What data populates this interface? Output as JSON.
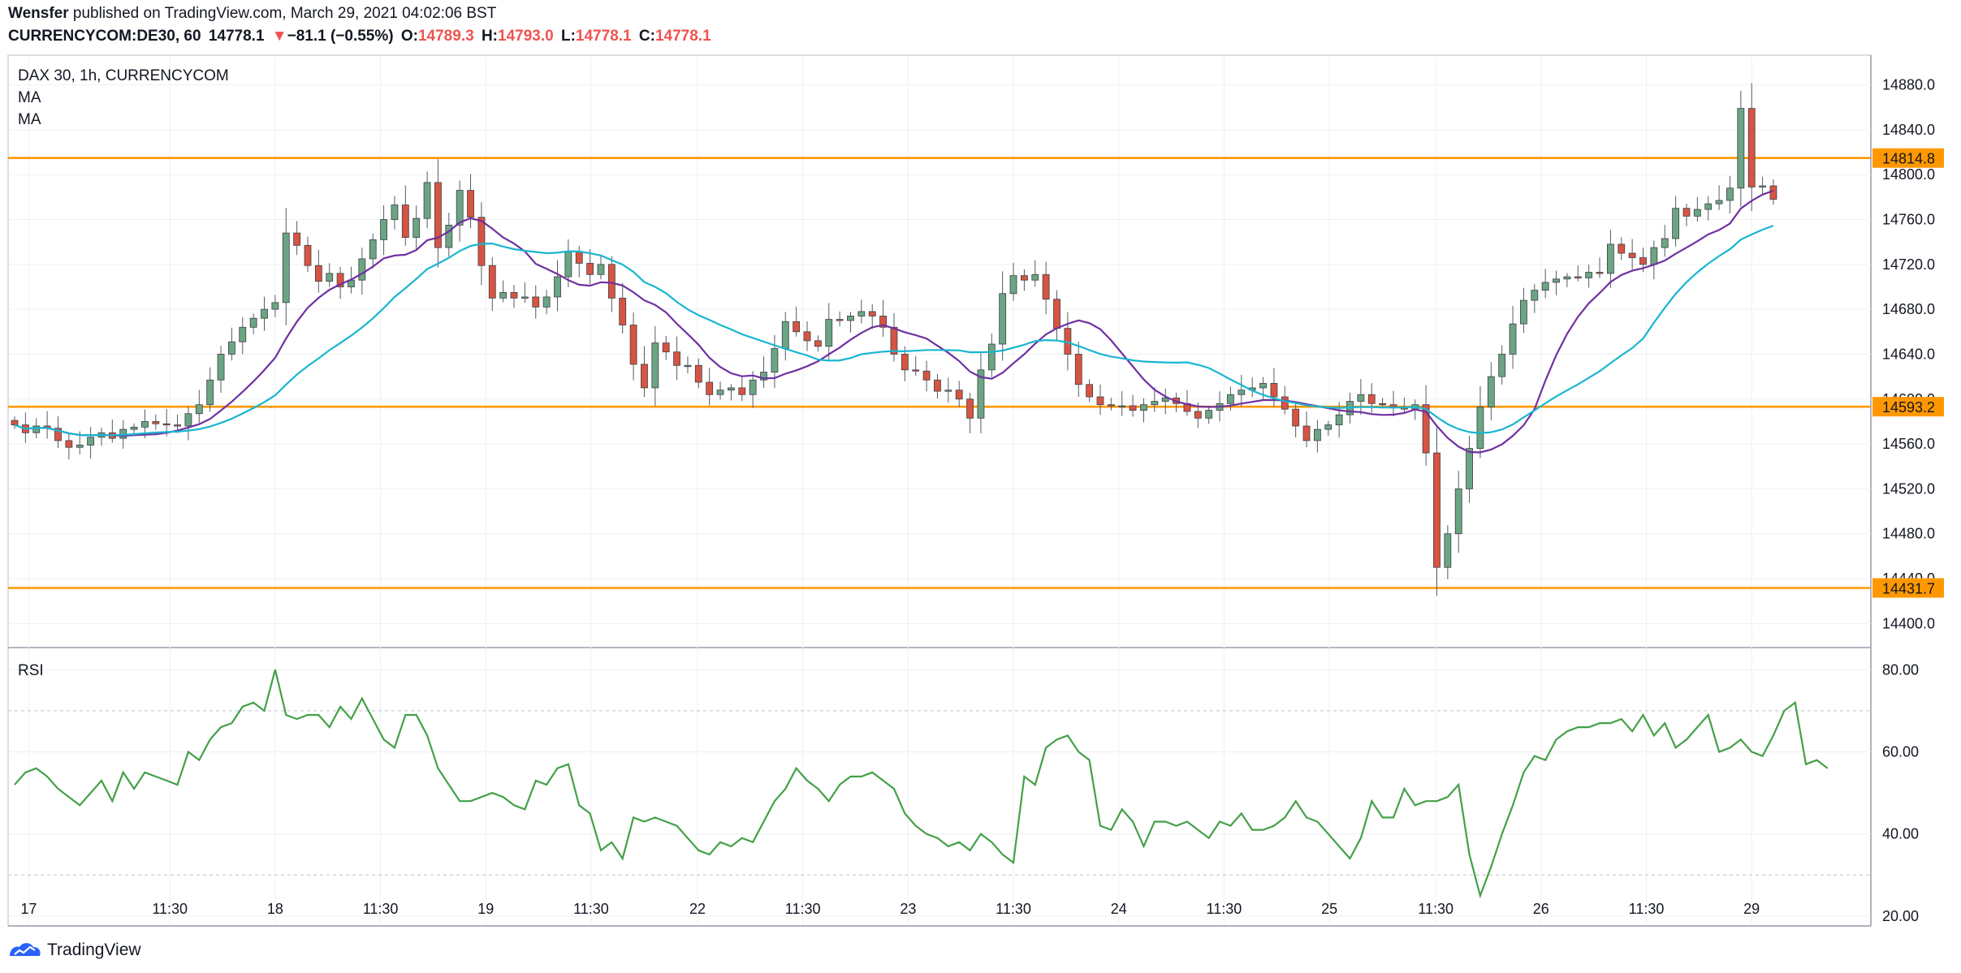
{
  "header": {
    "author": "Wensfer",
    "published_text": "published on TradingView.com, March 29, 2021 04:02:06 BST",
    "symbol": "CURRENCYCOM:DE30, 60",
    "last": "14778.1",
    "change_arrow": "▼",
    "change": "−81.1 (−0.55%)",
    "open_label": "O:",
    "open": "14789.3",
    "high_label": "H:",
    "high": "14793.0",
    "low_label": "L:",
    "low": "14778.1",
    "close_label": "C:",
    "close": "14778.1"
  },
  "legend": {
    "title": "DAX 30, 1h, CURRENCYCOM",
    "ma1": "MA",
    "ma2": "MA",
    "rsi": "RSI"
  },
  "footer": {
    "brand": "TradingView",
    "logo_icon": "tradingview-logo-icon"
  },
  "colors": {
    "up": "#6ba583",
    "down": "#d75442",
    "ma_fast": "#7030a0",
    "ma_slow": "#18b6cf",
    "level": "#ff9800",
    "rsi": "#43a047",
    "text_red": "#ef5350"
  },
  "chart_data": {
    "type": "candlestick",
    "price_axis": {
      "ylim": [
        14380,
        14905
      ],
      "ticks": [
        "14400.0",
        "14440.0",
        "14480.0",
        "14520.0",
        "14560.0",
        "14600.0",
        "14640.0",
        "14680.0",
        "14720.0",
        "14760.0",
        "14800.0",
        "14840.0",
        "14880.0"
      ]
    },
    "levels": [
      {
        "value": 14814.8,
        "label": "14814.8"
      },
      {
        "value": 14593.2,
        "label": "14593.2"
      },
      {
        "value": 14431.7,
        "label": "14431.7"
      }
    ],
    "x_ticks": [
      {
        "label": "17",
        "i": 1.3
      },
      {
        "label": "11:30",
        "i": 14.3
      },
      {
        "label": "18",
        "i": 24
      },
      {
        "label": "11:30",
        "i": 33.7
      },
      {
        "label": "19",
        "i": 43.4
      },
      {
        "label": "11:30",
        "i": 53.1
      },
      {
        "label": "22",
        "i": 62.9
      },
      {
        "label": "11:30",
        "i": 72.6
      },
      {
        "label": "23",
        "i": 82.3
      },
      {
        "label": "11:30",
        "i": 92
      },
      {
        "label": "24",
        "i": 101.7
      },
      {
        "label": "11:30",
        "i": 111.4
      },
      {
        "label": "25",
        "i": 121.1
      },
      {
        "label": "11:30",
        "i": 130.9
      },
      {
        "label": "26",
        "i": 140.6
      },
      {
        "label": "11:30",
        "i": 150.3
      },
      {
        "label": "29",
        "i": 160
      }
    ],
    "closes": [
      14577,
      14570,
      14576,
      14574,
      14563,
      14557,
      14559,
      14566,
      14570,
      14565,
      14573,
      14575,
      14580,
      14578,
      14577,
      14576,
      14587,
      14595,
      14617,
      14640,
      14651,
      14664,
      14672,
      14680,
      14686,
      14748,
      14737,
      14719,
      14705,
      14712,
      14700,
      14706,
      14725,
      14742,
      14760,
      14773,
      14744,
      14761,
      14793,
      14735,
      14755,
      14786,
      14762,
      14719,
      14690,
      14695,
      14690,
      14691,
      14682,
      14691,
      14709,
      14731,
      14721,
      14711,
      14720,
      14690,
      14666,
      14631,
      14610,
      14650,
      14642,
      14630,
      14630,
      14615,
      14604,
      14608,
      14610,
      14604,
      14617,
      14624,
      14645,
      14669,
      14660,
      14652,
      14647,
      14671,
      14670,
      14674,
      14678,
      14674,
      14664,
      14640,
      14626,
      14625,
      14617,
      14607,
      14608,
      14600,
      14583,
      14626,
      14649,
      14694,
      14710,
      14706,
      14711,
      14689,
      14663,
      14640,
      14613,
      14602,
      14595,
      14594,
      14594,
      14590,
      14595,
      14598,
      14601,
      14596,
      14589,
      14583,
      14590,
      14596,
      14604,
      14608,
      14610,
      14614,
      14602,
      14591,
      14576,
      14563,
      14573,
      14577,
      14586,
      14598,
      14604,
      14596,
      14595,
      14593,
      14591,
      14595,
      14552,
      14450,
      14480,
      14520,
      14556,
      14593,
      14620,
      14640,
      14667,
      14688,
      14697,
      14704,
      14707,
      14709,
      14708,
      14713,
      14712,
      14738,
      14730,
      14726,
      14720,
      14735,
      14743,
      14770,
      14763,
      14769,
      14774,
      14777,
      14788,
      14859,
      14789,
      14790,
      14778
    ],
    "rsi": {
      "ylim": [
        18,
        85
      ],
      "ticks": [
        "20.00",
        "40.00",
        "60.00",
        "80.00"
      ],
      "bands": [
        30,
        70
      ],
      "values": [
        52,
        55,
        56,
        54,
        51,
        49,
        47,
        50,
        53,
        48,
        55,
        51,
        55,
        54,
        53,
        52,
        60,
        58,
        63,
        66,
        67,
        71,
        72,
        70,
        80,
        69,
        68,
        69,
        69,
        66,
        71,
        68,
        73,
        68,
        63,
        61,
        69,
        69,
        64,
        56,
        52,
        48,
        48,
        49,
        50,
        49,
        47,
        46,
        53,
        52,
        56,
        57,
        47,
        45,
        36,
        38,
        34,
        44,
        43,
        44,
        43,
        42,
        39,
        36,
        35,
        38,
        37,
        39,
        38,
        43,
        48,
        51,
        56,
        53,
        51,
        48,
        52,
        54,
        54,
        55,
        53,
        51,
        45,
        42,
        40,
        39,
        37,
        38,
        36,
        40,
        38,
        35,
        33,
        54,
        52,
        61,
        63,
        64,
        60,
        58,
        42,
        41,
        46,
        43,
        37,
        43,
        43,
        42,
        43,
        41,
        39,
        43,
        42,
        45,
        41,
        41,
        42,
        44,
        48,
        44,
        43,
        40,
        37,
        34,
        39,
        48,
        44,
        44,
        51,
        47,
        48,
        48,
        49,
        52,
        35,
        25,
        32,
        40,
        47,
        55,
        59,
        58,
        63,
        65,
        66,
        66,
        67,
        67,
        68,
        65,
        69,
        64,
        67,
        61,
        63,
        66,
        69,
        60,
        61,
        63,
        60,
        59,
        64,
        70,
        72,
        57,
        58,
        56
      ]
    },
    "ma": {
      "fast_name": "MA",
      "slow_name": "MA"
    }
  }
}
